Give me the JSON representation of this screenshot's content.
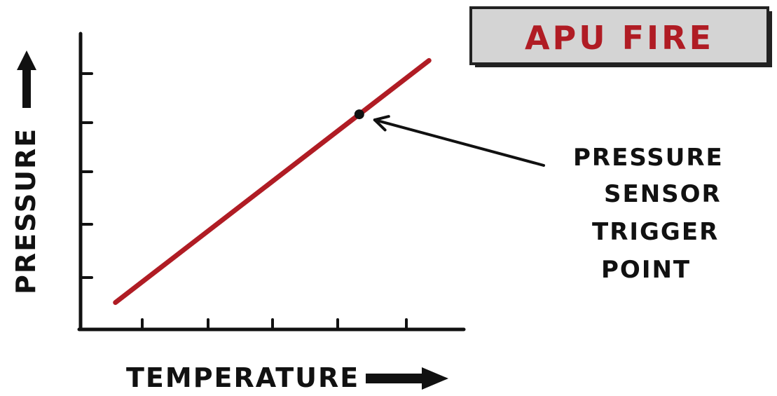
{
  "title_box": {
    "label": "APU FIRE",
    "fill_color": "#d4d4d4",
    "text_color": "#b01c24"
  },
  "chart_data": {
    "type": "line",
    "title": "",
    "xlabel": "TEMPERATURE",
    "ylabel": "PRESSURE",
    "x_ticks": 5,
    "y_ticks": 5,
    "series": [
      {
        "x": [
          0.1,
          1.0
        ],
        "y": [
          0.1,
          1.0
        ],
        "color": "#b01c24"
      }
    ],
    "annotation": {
      "text_lines": [
        "PRESSURE",
        "SENSOR",
        "TRIGGER",
        "POINT"
      ],
      "x": 0.8,
      "y": 0.8
    },
    "xlim": [
      0,
      1.1
    ],
    "ylim": [
      0,
      1.1
    ],
    "grid": false
  }
}
